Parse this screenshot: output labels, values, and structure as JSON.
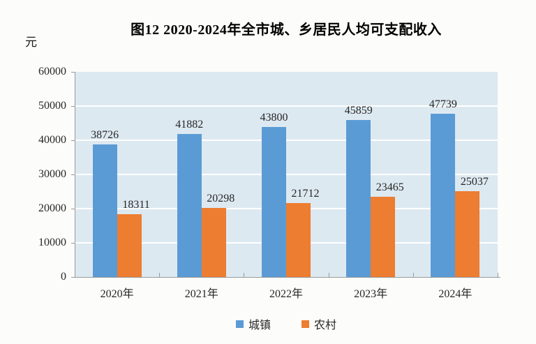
{
  "figure": {
    "title": "图12 2020-2024年全市城、乡居民人均可支配收入",
    "unit_label": "元"
  },
  "chart_data": {
    "type": "bar",
    "title": "图12 2020-2024年全市城、乡居民人均可支配收入",
    "unit_label": "元",
    "categories": [
      "2020年",
      "2021年",
      "2022年",
      "2023年",
      "2024年"
    ],
    "series": [
      {
        "id": "urban",
        "name": "城镇",
        "color": "#5B9BD5",
        "values": [
          38726,
          41882,
          43800,
          45859,
          47739
        ]
      },
      {
        "id": "rural",
        "name": "农村",
        "color": "#ED7D31",
        "values": [
          18311,
          20298,
          21712,
          23465,
          25037
        ]
      }
    ],
    "ylim": [
      0,
      60000
    ],
    "ytick_interval": 10000,
    "yticks": [
      "0",
      "10000",
      "20000",
      "30000",
      "40000",
      "50000",
      "60000"
    ],
    "grid": true,
    "legend_position": "bottom",
    "plot_background": "#DDE9F1",
    "gridline_color": "#FFFFFF",
    "axis_color": "#9A9A9A",
    "label_color": "#262626"
  }
}
